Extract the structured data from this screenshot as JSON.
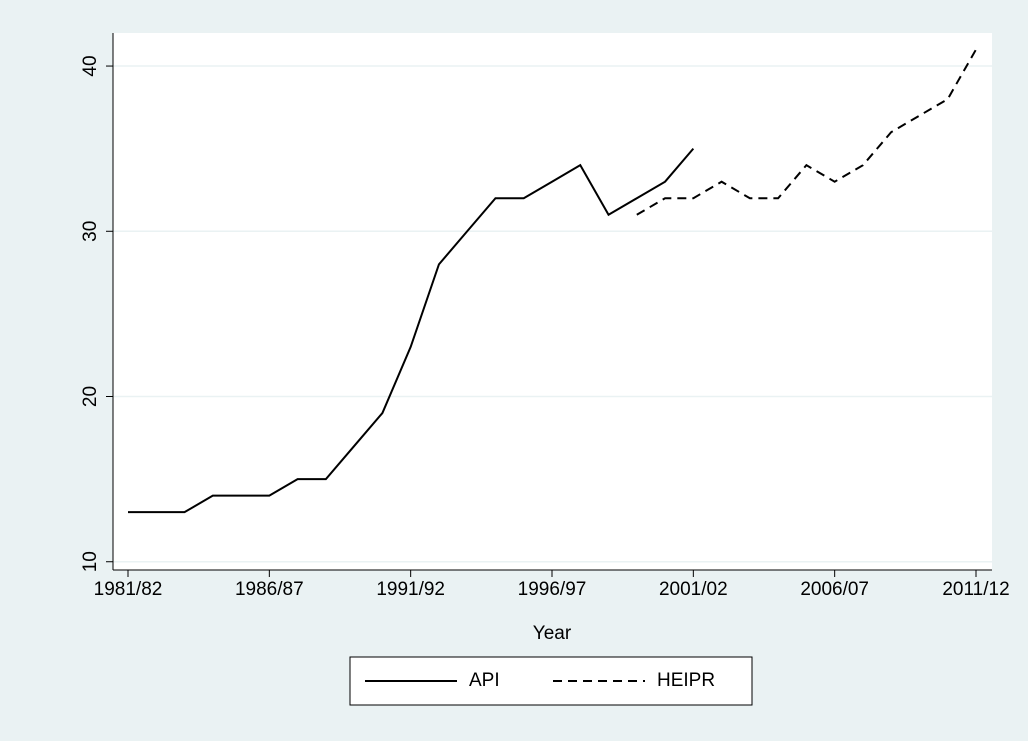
{
  "chart_data": {
    "type": "line",
    "x_label": "Year",
    "categories": [
      "1981/82",
      null,
      null,
      null,
      null,
      "1986/87",
      null,
      null,
      null,
      null,
      "1991/92",
      null,
      null,
      null,
      null,
      "1996/97",
      null,
      null,
      null,
      null,
      "2001/02",
      null,
      null,
      null,
      null,
      "2006/07",
      null,
      null,
      null,
      null,
      "2011/12"
    ],
    "series": [
      {
        "name": "API",
        "color": "#000000",
        "line_style": "solid",
        "values": [
          13,
          13,
          13,
          14,
          14,
          14,
          15,
          15,
          17,
          19,
          23,
          28,
          30,
          32,
          32,
          33,
          34,
          31,
          32,
          33,
          35,
          null,
          null,
          null,
          null,
          null,
          null,
          null,
          null,
          null,
          null
        ]
      },
      {
        "name": "HEIPR",
        "color": "#000000",
        "line_style": "dashed",
        "values": [
          null,
          null,
          null,
          null,
          null,
          null,
          null,
          null,
          null,
          null,
          null,
          null,
          null,
          null,
          null,
          null,
          null,
          null,
          31,
          32,
          32,
          33,
          32,
          32,
          34,
          33,
          34,
          36,
          37,
          38,
          41
        ]
      }
    ],
    "ylim": [
      9.5,
      42
    ],
    "yticks": [
      10,
      20,
      30,
      40
    ],
    "grid": true,
    "legend": "bottom"
  }
}
